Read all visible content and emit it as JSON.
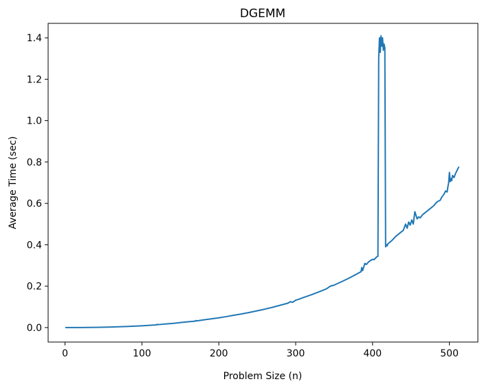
{
  "chart_data": {
    "type": "line",
    "title": "DGEMM",
    "xlabel": "Problem Size (n)",
    "ylabel": "Average Time (sec)",
    "xlim": [
      -22,
      537
    ],
    "ylim": [
      -0.07,
      1.47
    ],
    "xticks": [
      0,
      100,
      200,
      300,
      400,
      500
    ],
    "xtick_labels": [
      "0",
      "100",
      "200",
      "300",
      "400",
      "500"
    ],
    "yticks": [
      0.0,
      0.2,
      0.4,
      0.6,
      0.8,
      1.0,
      1.2,
      1.4
    ],
    "ytick_labels": [
      "0.0",
      "0.2",
      "0.4",
      "0.6",
      "0.8",
      "1.0",
      "1.2",
      "1.4"
    ],
    "grid": false,
    "series": [
      {
        "color": "#1f77b4",
        "x": [
          1,
          20,
          40,
          60,
          80,
          100,
          110,
          119,
          120,
          121,
          130,
          140,
          150,
          160,
          169,
          170,
          171,
          180,
          190,
          200,
          210,
          220,
          230,
          240,
          250,
          260,
          270,
          280,
          290,
          293,
          296,
          300,
          305,
          310,
          320,
          330,
          340,
          345,
          350,
          360,
          370,
          380,
          385,
          386,
          387,
          390,
          392,
          395,
          400,
          402,
          405,
          407,
          408,
          409,
          410,
          411,
          412,
          413,
          414,
          415,
          416,
          417,
          418,
          419,
          420,
          425,
          430,
          435,
          440,
          443,
          445,
          447,
          449,
          451,
          453,
          455,
          458,
          460,
          462,
          465,
          470,
          475,
          480,
          482,
          485,
          488,
          490,
          493,
          495,
          497,
          498,
          499,
          500,
          501,
          502,
          503,
          504,
          506,
          508,
          510,
          512
        ],
        "y": [
          0.0,
          0.0001,
          0.0008,
          0.0025,
          0.005,
          0.0085,
          0.011,
          0.013,
          0.016,
          0.014,
          0.017,
          0.02,
          0.024,
          0.028,
          0.031,
          0.034,
          0.032,
          0.037,
          0.042,
          0.047,
          0.053,
          0.06,
          0.066,
          0.073,
          0.081,
          0.089,
          0.098,
          0.108,
          0.118,
          0.125,
          0.122,
          0.132,
          0.138,
          0.145,
          0.158,
          0.172,
          0.187,
          0.2,
          0.205,
          0.222,
          0.24,
          0.26,
          0.27,
          0.29,
          0.275,
          0.31,
          0.305,
          0.318,
          0.33,
          0.328,
          0.34,
          0.345,
          1.3,
          1.4,
          1.33,
          1.41,
          1.36,
          1.4,
          1.34,
          1.37,
          1.35,
          0.39,
          0.4,
          0.395,
          0.405,
          0.42,
          0.44,
          0.455,
          0.47,
          0.5,
          0.48,
          0.51,
          0.495,
          0.52,
          0.5,
          0.56,
          0.525,
          0.535,
          0.53,
          0.545,
          0.56,
          0.575,
          0.59,
          0.6,
          0.61,
          0.615,
          0.63,
          0.645,
          0.66,
          0.655,
          0.68,
          0.7,
          0.75,
          0.705,
          0.72,
          0.71,
          0.735,
          0.725,
          0.745,
          0.76,
          0.775
        ]
      }
    ]
  }
}
